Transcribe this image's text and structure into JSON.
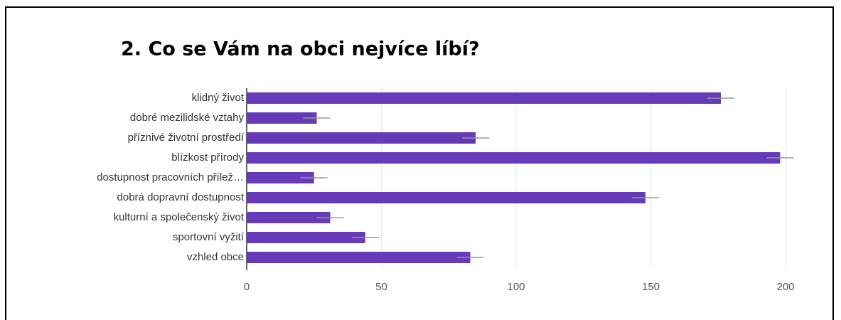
{
  "chart_data": {
    "type": "hbar",
    "title": "2. Co se Vám na obci nejvíce líbí?",
    "categories": [
      "klidný život",
      "dobré mezilidské vztahy",
      "příznivé životní prostředí",
      "blízkost přírody",
      "dostupnost pracovních přílež…",
      "dobrá dopravní dostupnost",
      "kulturní a společenský život",
      "sportovní vyžití",
      "vzhled obce"
    ],
    "values": [
      176,
      26,
      85,
      198,
      25,
      148,
      31,
      44,
      83
    ],
    "errors": [
      5,
      5,
      5,
      5,
      5,
      5,
      5,
      5,
      5
    ],
    "color": "#673ab7",
    "xlim": [
      0,
      200
    ],
    "xticks": [
      0,
      50,
      100,
      150,
      200
    ],
    "grid": true
  }
}
